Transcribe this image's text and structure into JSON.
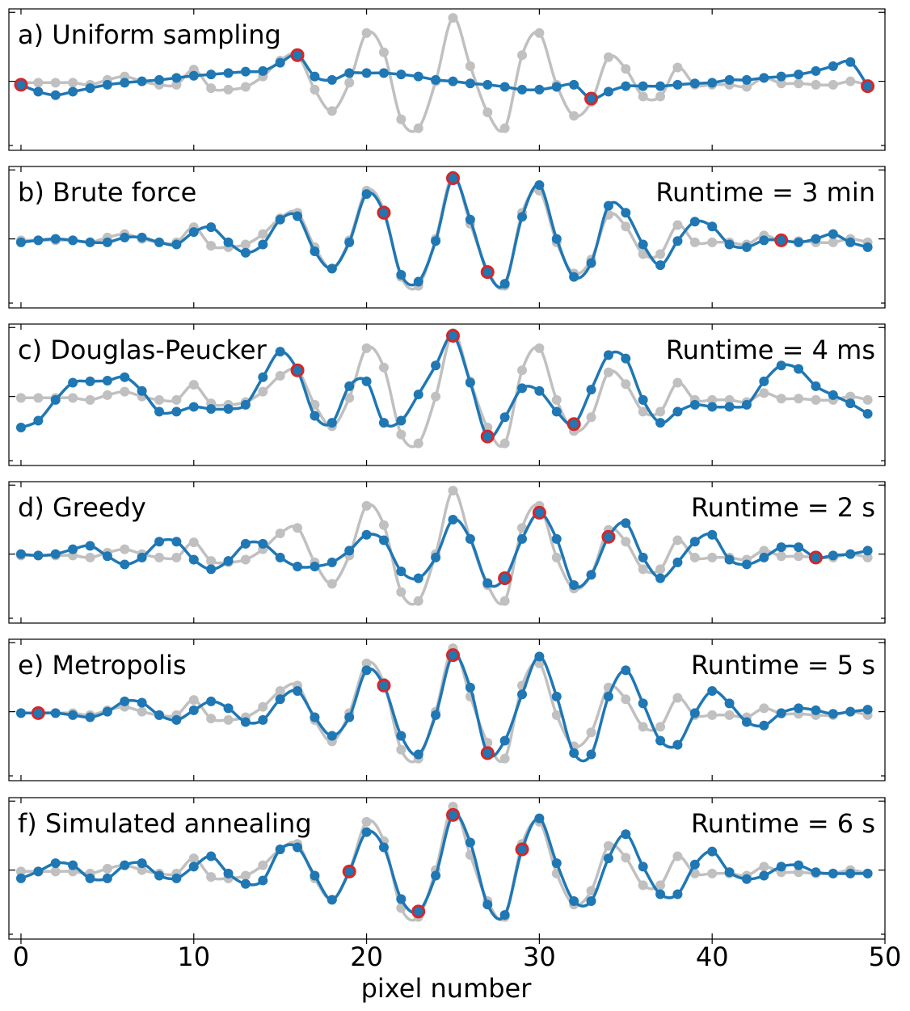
{
  "chart_data": {
    "type": "line",
    "xlabel": "pixel number",
    "xlim": [
      -0.7,
      50
    ],
    "x_ticks": [
      0,
      10,
      20,
      30,
      40,
      50
    ],
    "x_tick_labels": [
      "0",
      "10",
      "20",
      "30",
      "40",
      "50"
    ],
    "ylim": [
      -1.0,
      1.05
    ],
    "grid": false,
    "original": [
      -0.02,
      -0.02,
      -0.02,
      -0.02,
      -0.05,
      0.02,
      0.07,
      0.0,
      -0.05,
      -0.05,
      0.17,
      -0.1,
      -0.12,
      -0.08,
      0.07,
      0.3,
      0.38,
      -0.12,
      -0.43,
      -0.02,
      0.7,
      0.42,
      -0.55,
      -0.68,
      0.0,
      0.92,
      0.22,
      -0.45,
      -0.68,
      0.38,
      0.7,
      -0.05,
      -0.5,
      -0.3,
      0.35,
      0.18,
      -0.22,
      -0.22,
      0.2,
      -0.05,
      -0.05,
      -0.05,
      -0.08,
      0.05,
      -0.03,
      -0.03,
      -0.05,
      -0.05,
      0.0,
      -0.05
    ],
    "panels": [
      {
        "label": "a) Uniform sampling",
        "runtime": "",
        "fit": [
          -0.05,
          -0.15,
          -0.2,
          -0.15,
          -0.1,
          -0.05,
          -0.02,
          0.0,
          0.02,
          0.05,
          0.08,
          0.1,
          0.12,
          0.14,
          0.15,
          0.27,
          0.38,
          0.07,
          0.02,
          0.12,
          0.12,
          0.12,
          0.1,
          0.07,
          0.02,
          0.0,
          -0.03,
          -0.05,
          -0.08,
          -0.12,
          -0.12,
          -0.08,
          -0.05,
          -0.25,
          -0.15,
          -0.07,
          -0.07,
          -0.07,
          -0.05,
          -0.03,
          -0.02,
          0.02,
          0.02,
          0.05,
          0.07,
          0.1,
          0.15,
          0.22,
          0.28,
          -0.07
        ],
        "controls": [
          0,
          16,
          33,
          49
        ]
      },
      {
        "label": "b) Brute force",
        "runtime": "Runtime = 3 min",
        "fit": [
          -0.05,
          -0.02,
          0.0,
          -0.02,
          -0.05,
          -0.05,
          0.02,
          0.02,
          -0.05,
          -0.08,
          0.1,
          0.17,
          -0.05,
          -0.2,
          -0.08,
          0.28,
          0.33,
          -0.18,
          -0.43,
          -0.05,
          0.65,
          0.38,
          -0.52,
          -0.62,
          -0.03,
          0.88,
          0.28,
          -0.48,
          -0.65,
          0.32,
          0.78,
          0.0,
          -0.55,
          -0.35,
          0.48,
          0.38,
          -0.08,
          -0.38,
          -0.03,
          0.25,
          0.18,
          -0.08,
          -0.12,
          -0.02,
          -0.02,
          -0.05,
          0.0,
          0.07,
          -0.05,
          -0.12
        ],
        "controls": [
          21,
          25,
          27,
          44
        ]
      },
      {
        "label": "c) Douglas-Peucker",
        "runtime": "Runtime = 4 ms",
        "fit": [
          -0.45,
          -0.35,
          -0.05,
          0.2,
          0.22,
          0.23,
          0.28,
          0.08,
          -0.22,
          -0.22,
          -0.15,
          -0.18,
          -0.18,
          -0.12,
          0.28,
          0.65,
          0.38,
          -0.28,
          -0.38,
          0.15,
          0.22,
          -0.38,
          -0.35,
          0.03,
          0.45,
          0.88,
          0.2,
          -0.58,
          -0.3,
          0.12,
          0.08,
          -0.22,
          -0.4,
          0.1,
          0.6,
          0.55,
          -0.05,
          -0.38,
          -0.22,
          -0.12,
          -0.15,
          -0.15,
          -0.12,
          0.22,
          0.45,
          0.4,
          0.15,
          0.02,
          -0.1,
          -0.25
        ],
        "controls": [
          16,
          25,
          27,
          32
        ]
      },
      {
        "label": "d) Greedy",
        "runtime": "Runtime = 2 s",
        "fit": [
          0.0,
          -0.02,
          0.0,
          0.07,
          0.12,
          -0.03,
          -0.15,
          -0.05,
          0.18,
          0.18,
          -0.08,
          -0.22,
          -0.1,
          0.15,
          0.15,
          -0.05,
          -0.18,
          -0.18,
          -0.12,
          0.05,
          0.28,
          0.2,
          -0.25,
          -0.35,
          -0.05,
          0.5,
          0.22,
          -0.42,
          -0.35,
          0.22,
          0.6,
          0.22,
          -0.45,
          -0.3,
          0.25,
          0.45,
          -0.05,
          -0.35,
          -0.12,
          0.18,
          0.28,
          -0.08,
          -0.15,
          -0.05,
          0.1,
          0.1,
          -0.05,
          -0.02,
          0.0,
          0.05
        ],
        "controls": [
          28,
          30,
          34,
          46
        ]
      },
      {
        "label": "e) Metropolis",
        "runtime": "Runtime = 5 s",
        "fit": [
          -0.02,
          -0.02,
          -0.02,
          -0.05,
          -0.08,
          0.0,
          0.15,
          0.13,
          -0.05,
          -0.12,
          0.02,
          0.15,
          0.05,
          -0.15,
          -0.12,
          0.18,
          0.3,
          -0.08,
          -0.35,
          -0.08,
          0.6,
          0.38,
          -0.35,
          -0.62,
          -0.05,
          0.82,
          0.35,
          -0.6,
          -0.42,
          0.25,
          0.8,
          0.22,
          -0.6,
          -0.62,
          0.22,
          0.6,
          0.12,
          -0.42,
          -0.48,
          -0.02,
          0.3,
          0.12,
          -0.15,
          -0.2,
          -0.02,
          0.05,
          0.02,
          -0.03,
          0.0,
          0.03
        ],
        "controls": [
          1,
          21,
          25,
          27
        ]
      },
      {
        "label": "f)  Simulated annealing",
        "runtime": "Runtime = 6 s",
        "fit": [
          -0.12,
          -0.02,
          0.1,
          0.07,
          -0.12,
          -0.12,
          0.07,
          0.1,
          -0.08,
          -0.12,
          0.05,
          0.2,
          -0.05,
          -0.2,
          -0.15,
          0.3,
          0.33,
          -0.08,
          -0.43,
          -0.02,
          0.55,
          0.33,
          -0.42,
          -0.6,
          -0.08,
          0.8,
          0.4,
          -0.5,
          -0.65,
          0.3,
          0.75,
          0.1,
          -0.45,
          -0.45,
          0.17,
          0.52,
          0.05,
          -0.35,
          -0.35,
          0.08,
          0.27,
          -0.03,
          -0.13,
          -0.08,
          0.05,
          0.07,
          -0.03,
          -0.05,
          -0.05,
          -0.05
        ],
        "controls": [
          19,
          23,
          25,
          29
        ]
      }
    ]
  }
}
